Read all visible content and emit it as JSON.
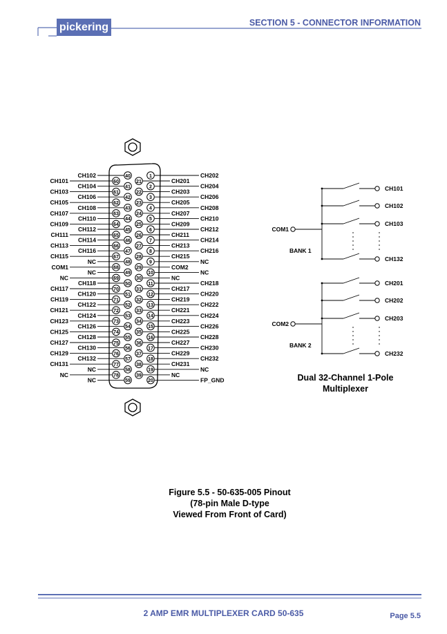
{
  "header": {
    "logo": "pickering",
    "section": "SECTION 5 - CONNECTOR INFORMATION"
  },
  "pinout": {
    "row1": [
      {
        "pin": "1",
        "label": "CH202"
      },
      {
        "pin": "2",
        "label": "CH204"
      },
      {
        "pin": "3",
        "label": "CH206"
      },
      {
        "pin": "4",
        "label": "CH208"
      },
      {
        "pin": "5",
        "label": "CH210"
      },
      {
        "pin": "6",
        "label": "CH212"
      },
      {
        "pin": "7",
        "label": "CH214"
      },
      {
        "pin": "8",
        "label": "CH216"
      },
      {
        "pin": "9",
        "label": "NC"
      },
      {
        "pin": "10",
        "label": "NC"
      },
      {
        "pin": "11",
        "label": "CH218"
      },
      {
        "pin": "12",
        "label": "CH220"
      },
      {
        "pin": "13",
        "label": "CH222"
      },
      {
        "pin": "14",
        "label": "CH224"
      },
      {
        "pin": "15",
        "label": "CH226"
      },
      {
        "pin": "16",
        "label": "CH228"
      },
      {
        "pin": "17",
        "label": "CH230"
      },
      {
        "pin": "18",
        "label": "CH232"
      },
      {
        "pin": "19",
        "label": "NC"
      },
      {
        "pin": "20",
        "label": "FP_GND"
      }
    ],
    "row2": [
      {
        "pin": "21",
        "label": "CH201"
      },
      {
        "pin": "22",
        "label": "CH203"
      },
      {
        "pin": "23",
        "label": "CH205"
      },
      {
        "pin": "24",
        "label": "CH207"
      },
      {
        "pin": "25",
        "label": "CH209"
      },
      {
        "pin": "26",
        "label": "CH211"
      },
      {
        "pin": "27",
        "label": "CH213"
      },
      {
        "pin": "28",
        "label": "CH215"
      },
      {
        "pin": "29",
        "label": "COM2"
      },
      {
        "pin": "30",
        "label": "NC"
      },
      {
        "pin": "31",
        "label": "CH217"
      },
      {
        "pin": "32",
        "label": "CH219"
      },
      {
        "pin": "33",
        "label": "CH221"
      },
      {
        "pin": "34",
        "label": "CH223"
      },
      {
        "pin": "35",
        "label": "CH225"
      },
      {
        "pin": "36",
        "label": "CH227"
      },
      {
        "pin": "37",
        "label": "CH229"
      },
      {
        "pin": "38",
        "label": "CH231"
      },
      {
        "pin": "39",
        "label": "NC"
      }
    ],
    "row3": [
      {
        "pin": "40",
        "label": "CH102"
      },
      {
        "pin": "41",
        "label": "CH104"
      },
      {
        "pin": "42",
        "label": "CH106"
      },
      {
        "pin": "43",
        "label": "CH108"
      },
      {
        "pin": "44",
        "label": "CH110"
      },
      {
        "pin": "45",
        "label": "CH112"
      },
      {
        "pin": "46",
        "label": "CH114"
      },
      {
        "pin": "47",
        "label": "CH116"
      },
      {
        "pin": "48",
        "label": "NC"
      },
      {
        "pin": "49",
        "label": "NC"
      },
      {
        "pin": "50",
        "label": "CH118"
      },
      {
        "pin": "51",
        "label": "CH120"
      },
      {
        "pin": "52",
        "label": "CH122"
      },
      {
        "pin": "53",
        "label": "CH124"
      },
      {
        "pin": "54",
        "label": "CH126"
      },
      {
        "pin": "55",
        "label": "CH128"
      },
      {
        "pin": "56",
        "label": "CH130"
      },
      {
        "pin": "57",
        "label": "CH132"
      },
      {
        "pin": "58",
        "label": "NC"
      },
      {
        "pin": "59",
        "label": "NC"
      }
    ],
    "row4": [
      {
        "pin": "60",
        "label": "CH101"
      },
      {
        "pin": "61",
        "label": "CH103"
      },
      {
        "pin": "62",
        "label": "CH105"
      },
      {
        "pin": "63",
        "label": "CH107"
      },
      {
        "pin": "64",
        "label": "CH109"
      },
      {
        "pin": "65",
        "label": "CH111"
      },
      {
        "pin": "66",
        "label": "CH113"
      },
      {
        "pin": "67",
        "label": "CH115"
      },
      {
        "pin": "68",
        "label": "COM1"
      },
      {
        "pin": "69",
        "label": "NC"
      },
      {
        "pin": "70",
        "label": "CH117"
      },
      {
        "pin": "71",
        "label": "CH119"
      },
      {
        "pin": "72",
        "label": "CH121"
      },
      {
        "pin": "73",
        "label": "CH123"
      },
      {
        "pin": "74",
        "label": "CH125"
      },
      {
        "pin": "75",
        "label": "CH127"
      },
      {
        "pin": "76",
        "label": "CH129"
      },
      {
        "pin": "77",
        "label": "CH131"
      },
      {
        "pin": "78",
        "label": "NC"
      }
    ]
  },
  "mux": {
    "bank1": {
      "com": "COM1",
      "bank": "BANK 1",
      "channels": [
        "CH101",
        "CH102",
        "CH103",
        "CH132"
      ]
    },
    "bank2": {
      "com": "COM2",
      "bank": "BANK 2",
      "channels": [
        "CH201",
        "CH202",
        "CH203",
        "CH232"
      ]
    },
    "title_line1": "Dual 32-Channel 1-Pole",
    "title_line2": "Multiplexer"
  },
  "caption": {
    "line1": "Figure 5.5 - 50-635-005 Pinout",
    "line2": "(78-pin Male D-type",
    "line3": "Viewed From Front of Card)"
  },
  "footer": {
    "title": "2 AMP EMR MULTIPLEXER CARD  50-635",
    "page": "Page 5.5"
  },
  "colors": {
    "brand": "#5b6fb4",
    "accent_text": "#4a5aa6"
  }
}
